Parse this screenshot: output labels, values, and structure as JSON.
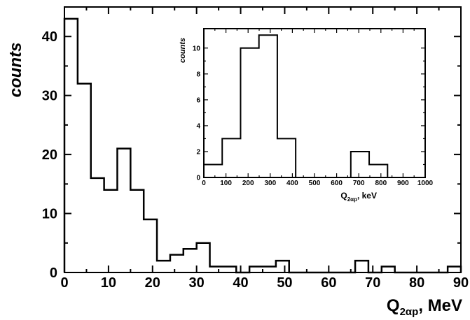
{
  "chart_data": [
    {
      "type": "bar",
      "title": "",
      "ylabel": "counts",
      "xlabel_main": "Q",
      "xlabel_sub": "2αp",
      "xlabel_unit": ", MeV",
      "xlim": [
        0,
        90
      ],
      "ylim": [
        0,
        45
      ],
      "xticks": [
        "0",
        "10",
        "20",
        "30",
        "40",
        "50",
        "60",
        "70",
        "80",
        "90"
      ],
      "yticks": [
        "0",
        "10",
        "20",
        "30",
        "40"
      ],
      "bin_edges": [
        0,
        3,
        6,
        9,
        12,
        15,
        18,
        21,
        24,
        27,
        30,
        33,
        36,
        39,
        42,
        45,
        48,
        51,
        54,
        57,
        60,
        63,
        66,
        69,
        72,
        75,
        78,
        81,
        84,
        87,
        90
      ],
      "values": [
        43,
        32,
        16,
        14,
        21,
        14,
        9,
        2,
        3,
        4,
        5,
        1,
        1,
        0,
        1,
        1,
        2,
        0,
        0,
        0,
        0,
        0,
        2,
        0,
        1,
        0,
        0,
        0,
        0,
        1
      ],
      "grid": false,
      "legend": "none"
    },
    {
      "type": "bar",
      "title": "",
      "ylabel": "counts",
      "xlabel_main": "Q",
      "xlabel_sub": "2αp",
      "xlabel_unit": ", keV",
      "xlim": [
        0,
        1000
      ],
      "ylim": [
        0,
        11.5
      ],
      "xticks": [
        "0",
        "100",
        "200",
        "300",
        "400",
        "500",
        "600",
        "700",
        "800",
        "900",
        "1000"
      ],
      "yticks": [
        "0",
        "2",
        "4",
        "6",
        "8",
        "10"
      ],
      "bin_edges": [
        0,
        83,
        166,
        249,
        332,
        415,
        498,
        581,
        664,
        747,
        830,
        913,
        1000
      ],
      "values": [
        1,
        3,
        10,
        11,
        3,
        0,
        0,
        0,
        2,
        1,
        0,
        0
      ],
      "grid": false,
      "legend": "none"
    }
  ]
}
